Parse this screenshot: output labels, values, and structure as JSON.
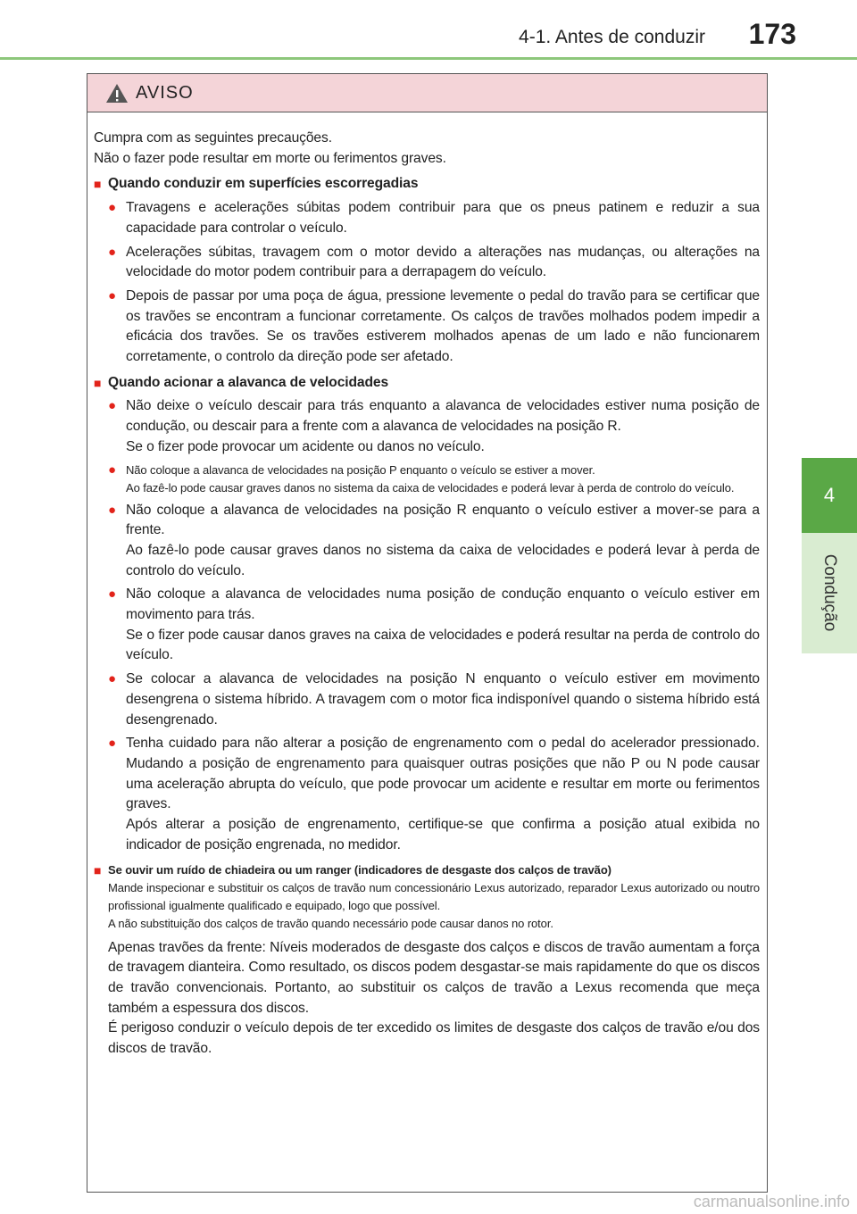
{
  "header": {
    "section": "4-1. Antes de conduzir",
    "page": "173"
  },
  "side_tab": {
    "number": "4",
    "label": "Condução"
  },
  "warning": {
    "title": "AVISO",
    "intro": [
      "Cumpra com as seguintes precauções.",
      "Não o fazer pode resultar em morte ou ferimentos graves."
    ],
    "sections": [
      {
        "heading": "Quando conduzir em superfícies escorregadias",
        "items": [
          [
            "Travagens e acelerações súbitas podem contribuir para que os pneus patinem e reduzir a sua capacidade para controlar o veículo."
          ],
          [
            "Acelerações súbitas, travagem com o motor devido a alterações nas mudanças, ou alterações na velocidade do motor podem contribuir para a derrapagem do veículo."
          ],
          [
            "Depois de passar por uma poça de água, pressione levemente o pedal do travão para se certificar que os travões se encontram a funcionar corretamente. Os calços de travões molhados podem impedir a eficácia dos travões. Se os travões estiverem molhados apenas de um lado e não funcionarem corretamente, o controlo da direção pode ser afetado."
          ]
        ]
      },
      {
        "heading": "Quando acionar a alavanca de velocidades",
        "items": [
          [
            "Não deixe o veículo descair para trás enquanto a alavanca de velocidades estiver numa posição de condução, ou descair para a frente com a alavanca de velocidades na posição R.",
            "Se o fizer pode provocar um acidente ou danos no veículo."
          ],
          [
            "Não coloque a alavanca de velocidades na posição P enquanto o veículo se estiver a mover.",
            "Ao fazê-lo pode causar graves danos no sistema da caixa de velocidades e poderá levar à perda de controlo do veículo."
          ],
          [
            "Não coloque a alavanca de velocidades na posição R enquanto o veículo estiver a mover-se para a frente.",
            "Ao fazê-lo pode causar graves danos no sistema da caixa de velocidades e poderá levar à perda de controlo do veículo."
          ],
          [
            "Não coloque a alavanca de velocidades numa posição de condução enquanto o veículo estiver em movimento para trás.",
            "Se o fizer pode causar danos graves na caixa de velocidades e poderá resultar na perda de controlo do veículo."
          ],
          [
            "Se colocar a alavanca de velocidades na posição N enquanto o veículo estiver em movimento desengrena o sistema híbrido. A travagem com o motor fica indisponível quando o sistema híbrido está desengrenado."
          ],
          [
            "Tenha cuidado para não alterar a posição de engrenamento com o pedal do acelerador pressionado. Mudando a posição de engrenamento para quaisquer outras posições que não P ou N pode causar uma aceleração abrupta do veículo, que pode provocar um acidente e resultar em morte ou ferimentos graves.",
            "Após alterar a posição de engrenamento, certifique-se que confirma a posição atual exibida no indicador de posição engrenada, no medidor."
          ]
        ]
      },
      {
        "heading": "Se ouvir um ruído de chiadeira ou um ranger (indicadores de desgaste dos calços de travão)",
        "body": [
          "Mande inspecionar e substituir os calços de travão num concessionário Lexus autorizado, reparador Lexus autorizado ou noutro profissional igualmente qualificado e equipado, logo que possível.",
          "A não substituição dos calços de travão quando necessário pode causar danos no rotor.",
          "Apenas travões da frente: Níveis moderados de desgaste dos calços e discos de travão aumentam a força de travagem dianteira. Como resultado, os discos podem desgastar-se mais rapidamente do que os discos de travão convencionais. Portanto, ao substituir os calços de travão a Lexus recomenda que meça também a espessura dos discos.",
          "É perigoso conduzir o veículo depois de ter excedido os limites de desgaste dos calços de travão e/ou dos discos de travão."
        ]
      }
    ]
  },
  "footer": {
    "watermark": "carmanualsonline.info"
  }
}
